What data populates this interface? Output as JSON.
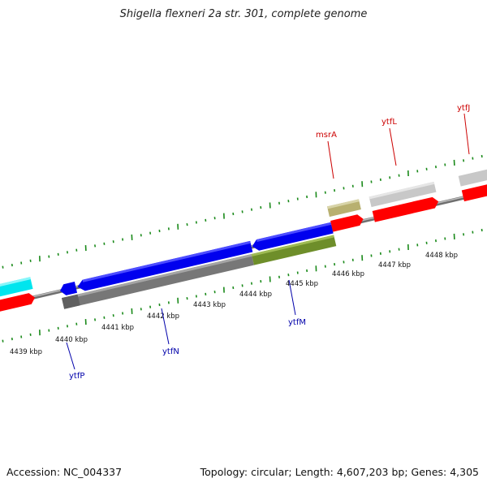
{
  "title": "Shigella flexneri 2a str. 301, complete genome",
  "footer": {
    "accession": "Accession: NC_004337",
    "topology": "Topology: circular; Length: 4,607,203 bp; Genes: 4,305"
  },
  "scale_labels": [
    "4439 kbp",
    "4440 kbp",
    "4441 kbp",
    "4442 kbp",
    "4443 kbp",
    "4444 kbp",
    "4445 kbp",
    "4446 kbp",
    "4447 kbp",
    "4448 kbp"
  ],
  "genes": [
    {
      "name": "ytfP",
      "color": "#0000aa"
    },
    {
      "name": "ytfN",
      "color": "#0000aa"
    },
    {
      "name": "ytfM",
      "color": "#0000aa"
    },
    {
      "name": "msrA",
      "color": "#cc0000"
    },
    {
      "name": "ytfL",
      "color": "#cc0000"
    },
    {
      "name": "ytfJ",
      "color": "#cc0000"
    }
  ],
  "colors": {
    "backbone": "#888888",
    "ticks": "#1a8a1a",
    "cds_forward": "#ff0000",
    "cds_reverse": "#0000ee",
    "gene_gray": "#777777",
    "gene_light": "#c8c8c8",
    "olive": "#6e8e2a",
    "khaki": "#b8b070",
    "cyan": "#00e5ee"
  }
}
